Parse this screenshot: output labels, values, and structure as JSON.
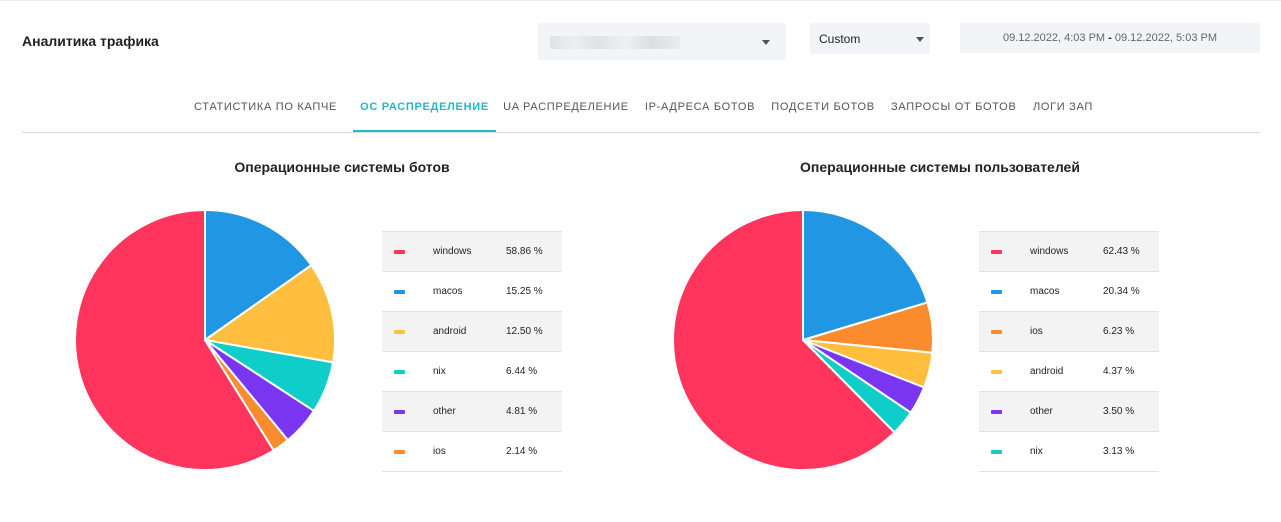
{
  "header": {
    "title": "Аналитика трафика",
    "project_select": {
      "value": ""
    },
    "range_select": {
      "value": "Custom"
    },
    "date_range": {
      "start": "09.12.2022, 4:03 PM",
      "separator": "-",
      "end": "09.12.2022, 5:03 PM"
    }
  },
  "tabs": [
    {
      "label": "СТАТИСТИКА ПО КАПЧЕ"
    },
    {
      "label": "ОС РАСПРЕДЕЛЕНИЕ",
      "active": true
    },
    {
      "label": "UA РАСПРЕДЕЛЕНИЕ"
    },
    {
      "label": "IP-АДРЕСА БОТОВ"
    },
    {
      "label": "ПОДСЕТИ БОТОВ"
    },
    {
      "label": "ЗАПРОСЫ ОТ БОТОВ"
    },
    {
      "label": "ЛОГИ ЗАП"
    }
  ],
  "colors": {
    "accent": "#23b7c7",
    "windows": "#ff355e",
    "macos": "#2196e3",
    "android": "#ffbe3d",
    "nix": "#0fcdc9",
    "other": "#7a35f0",
    "ios": "#fb8c2e"
  },
  "chart_data": [
    {
      "type": "pie",
      "title": "Операционные системы ботов",
      "labels": [
        "windows",
        "macos",
        "android",
        "nix",
        "other",
        "ios"
      ],
      "values": [
        58.86,
        15.25,
        12.5,
        6.44,
        4.81,
        2.14
      ],
      "value_labels": [
        "58.86 %",
        "15.25 %",
        "12.50 %",
        "6.44 %",
        "4.81 %",
        "2.14 %"
      ],
      "legend_position": "right"
    },
    {
      "type": "pie",
      "title": "Операционные системы пользователей",
      "labels": [
        "windows",
        "macos",
        "ios",
        "android",
        "other",
        "nix"
      ],
      "values": [
        62.43,
        20.34,
        6.23,
        4.37,
        3.5,
        3.13
      ],
      "value_labels": [
        "62.43 %",
        "20.34 %",
        "6.23 %",
        "4.37 %",
        "3.50 %",
        "3.13 %"
      ],
      "legend_position": "right"
    }
  ]
}
